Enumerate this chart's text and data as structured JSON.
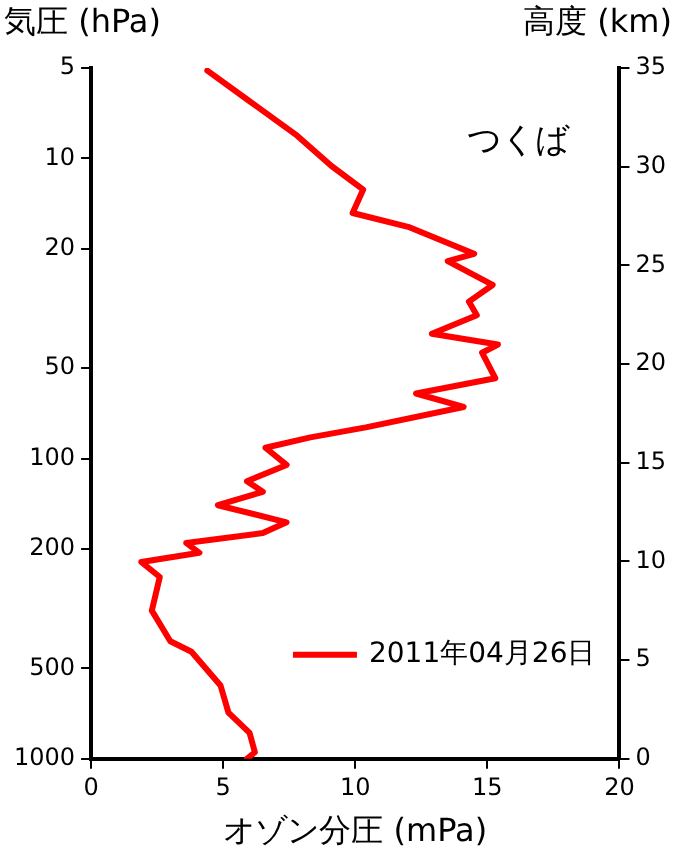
{
  "chart_data": {
    "type": "line",
    "xlabel": "オゾン分圧 (mPa)",
    "ylabel": "気圧 (hPa)",
    "y2label": "高度 (km)",
    "annotations": [
      "つくば"
    ],
    "xlim": [
      0,
      20
    ],
    "xticks": [
      0,
      5,
      10,
      15,
      20
    ],
    "ylim": [
      1000,
      5
    ],
    "yticks": [
      5,
      10,
      20,
      50,
      100,
      200,
      500,
      1000
    ],
    "y2lim": [
      0,
      35
    ],
    "y2ticks": [
      0,
      5,
      10,
      15,
      20,
      25,
      30,
      35
    ],
    "log": "y",
    "grid": false,
    "legend": "bottom right",
    "marker": "none",
    "line_style": "solid",
    "series": [
      {
        "name": "2011年04月26日",
        "color": "#ff0000",
        "x": [
          4.4,
          6.0,
          7.8,
          9.1,
          10.3,
          9.9,
          12.0,
          14.5,
          13.5,
          15.2,
          14.3,
          14.6,
          12.9,
          15.4,
          14.8,
          15.3,
          12.3,
          14.1,
          10.4,
          8.3,
          6.6,
          7.4,
          5.9,
          6.5,
          4.8,
          7.4,
          6.5,
          3.6,
          4.1,
          1.9,
          2.6,
          2.3,
          3.0,
          3.8,
          4.9,
          5.2,
          6.0,
          6.2,
          5.9
        ],
        "values": [
          5.1,
          6.45,
          8.4,
          10.6,
          12.7,
          15.2,
          16.9,
          20.8,
          22,
          26.4,
          30,
          33.3,
          38.4,
          41.7,
          44.4,
          54,
          60.7,
          67.3,
          78.7,
          85,
          92,
          105,
          119,
          129,
          143,
          163,
          177,
          191,
          206,
          221,
          248,
          321,
          406,
          440,
          570,
          702,
          820,
          951,
          1000
        ]
      }
    ]
  }
}
